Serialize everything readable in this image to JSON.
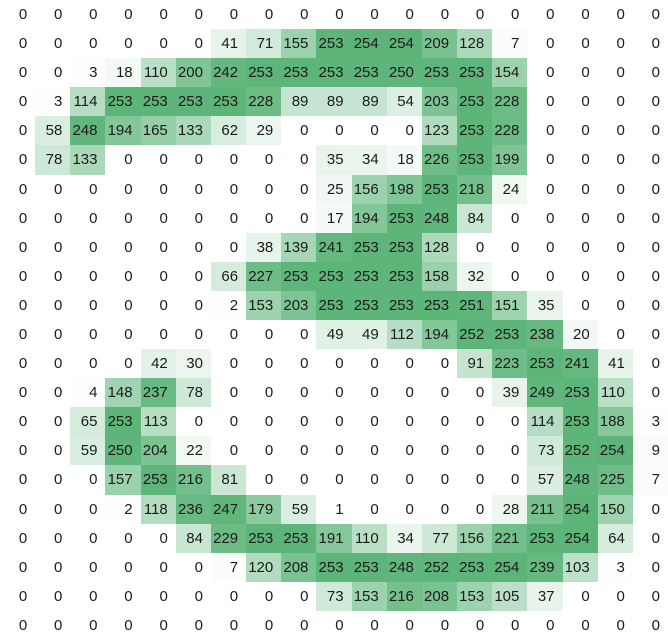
{
  "chart_data": {
    "type": "heatmap",
    "title": "",
    "xlabel": "",
    "ylabel": "",
    "rows": 22,
    "cols": 19,
    "legend": false,
    "grid": false,
    "annotations": "each cell shows its integer pixel intensity value",
    "value_domain": [
      0,
      255
    ],
    "colormap": {
      "min_color": "#ffffff",
      "max_color": "#5cb478",
      "description": "linear white-to-green shading proportional to cell value"
    },
    "text_color": "#1b1b1b",
    "matrix": [
      [
        0,
        0,
        0,
        0,
        0,
        0,
        0,
        0,
        0,
        0,
        0,
        0,
        0,
        0,
        0,
        0,
        0,
        0,
        0
      ],
      [
        0,
        0,
        0,
        0,
        0,
        0,
        41,
        71,
        155,
        253,
        254,
        254,
        209,
        128,
        7,
        0,
        0,
        0,
        0
      ],
      [
        0,
        0,
        3,
        18,
        110,
        200,
        242,
        253,
        253,
        253,
        253,
        250,
        253,
        253,
        154,
        0,
        0,
        0,
        0
      ],
      [
        0,
        3,
        114,
        253,
        253,
        253,
        253,
        228,
        89,
        89,
        89,
        54,
        203,
        253,
        228,
        0,
        0,
        0,
        0
      ],
      [
        0,
        58,
        248,
        194,
        165,
        133,
        62,
        29,
        0,
        0,
        0,
        0,
        123,
        253,
        228,
        0,
        0,
        0,
        0
      ],
      [
        0,
        78,
        133,
        0,
        0,
        0,
        0,
        0,
        0,
        35,
        34,
        18,
        226,
        253,
        199,
        0,
        0,
        0,
        0
      ],
      [
        0,
        0,
        0,
        0,
        0,
        0,
        0,
        0,
        0,
        25,
        156,
        198,
        253,
        218,
        24,
        0,
        0,
        0,
        0
      ],
      [
        0,
        0,
        0,
        0,
        0,
        0,
        0,
        0,
        0,
        17,
        194,
        253,
        248,
        84,
        0,
        0,
        0,
        0,
        0
      ],
      [
        0,
        0,
        0,
        0,
        0,
        0,
        0,
        38,
        139,
        241,
        253,
        253,
        128,
        0,
        0,
        0,
        0,
        0,
        0
      ],
      [
        0,
        0,
        0,
        0,
        0,
        0,
        66,
        227,
        253,
        253,
        253,
        253,
        158,
        32,
        0,
        0,
        0,
        0,
        0
      ],
      [
        0,
        0,
        0,
        0,
        0,
        0,
        2,
        153,
        203,
        253,
        253,
        253,
        253,
        251,
        151,
        35,
        0,
        0,
        0
      ],
      [
        0,
        0,
        0,
        0,
        0,
        0,
        0,
        0,
        0,
        49,
        49,
        112,
        194,
        252,
        253,
        238,
        20,
        0,
        0
      ],
      [
        0,
        0,
        0,
        0,
        42,
        30,
        0,
        0,
        0,
        0,
        0,
        0,
        0,
        91,
        223,
        253,
        241,
        41,
        0
      ],
      [
        0,
        0,
        4,
        148,
        237,
        78,
        0,
        0,
        0,
        0,
        0,
        0,
        0,
        0,
        39,
        249,
        253,
        110,
        0
      ],
      [
        0,
        0,
        65,
        253,
        113,
        0,
        0,
        0,
        0,
        0,
        0,
        0,
        0,
        0,
        0,
        114,
        253,
        188,
        3
      ],
      [
        0,
        0,
        59,
        250,
        204,
        22,
        0,
        0,
        0,
        0,
        0,
        0,
        0,
        0,
        0,
        73,
        252,
        254,
        9
      ],
      [
        0,
        0,
        0,
        157,
        253,
        216,
        81,
        0,
        0,
        0,
        0,
        0,
        0,
        0,
        0,
        57,
        248,
        225,
        7
      ],
      [
        0,
        0,
        0,
        2,
        118,
        236,
        247,
        179,
        59,
        1,
        0,
        0,
        0,
        0,
        28,
        211,
        254,
        150,
        0
      ],
      [
        0,
        0,
        0,
        0,
        0,
        84,
        229,
        253,
        253,
        191,
        110,
        34,
        77,
        156,
        221,
        253,
        254,
        64,
        0
      ],
      [
        0,
        0,
        0,
        0,
        0,
        0,
        7,
        120,
        208,
        253,
        253,
        248,
        252,
        253,
        254,
        239,
        103,
        3,
        0
      ],
      [
        0,
        0,
        0,
        0,
        0,
        0,
        0,
        0,
        0,
        73,
        153,
        216,
        208,
        153,
        105,
        37,
        0,
        0,
        0
      ],
      [
        0,
        0,
        0,
        0,
        0,
        0,
        0,
        0,
        0,
        0,
        0,
        0,
        0,
        0,
        0,
        0,
        0,
        0,
        0
      ]
    ]
  }
}
